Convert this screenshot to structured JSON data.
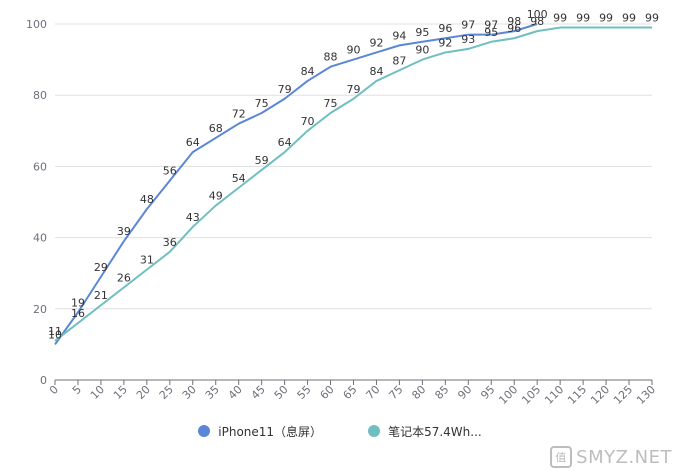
{
  "chart_data": {
    "type": "line",
    "x": [
      0,
      5,
      10,
      15,
      20,
      25,
      30,
      35,
      40,
      45,
      50,
      55,
      60,
      65,
      70,
      75,
      80,
      85,
      90,
      95,
      100,
      105,
      110,
      115,
      120,
      125,
      130
    ],
    "x_tick_labels": [
      "0",
      "5",
      "10",
      "15",
      "20",
      "25",
      "30",
      "35",
      "40",
      "45",
      "50",
      "55",
      "60",
      "65",
      "70",
      "75",
      "80",
      "85",
      "90",
      "95",
      "100",
      "105",
      "110",
      "115",
      "120",
      "125",
      "130"
    ],
    "y_tick_labels": [
      "0",
      "20",
      "40",
      "60",
      "80",
      "100"
    ],
    "ylim": [
      0,
      100
    ],
    "grid": true,
    "legend_position": "bottom",
    "series": [
      {
        "name": "iPhone11（息屏）",
        "color": "#5b87d6",
        "values": [
          10,
          19,
          29,
          39,
          48,
          56,
          64,
          68,
          72,
          75,
          79,
          84,
          88,
          90,
          92,
          94,
          95,
          96,
          97,
          97,
          98,
          100,
          null,
          null,
          null,
          null,
          null
        ],
        "labels": [
          "10",
          "19",
          "29",
          "39",
          "48",
          "56",
          "64",
          "68",
          "72",
          "75",
          "79",
          "84",
          "88",
          "90",
          "92",
          "94",
          "95",
          "96",
          "97",
          "97",
          "98",
          "100",
          null,
          null,
          null,
          null,
          null
        ]
      },
      {
        "name": "笔记本57.4Wh...",
        "color": "#6fbfc2",
        "values": [
          11,
          16,
          21,
          26,
          31,
          36,
          43,
          49,
          54,
          59,
          64,
          70,
          75,
          79,
          84,
          87,
          90,
          92,
          93,
          95,
          96,
          98,
          99,
          99,
          99,
          99,
          99
        ],
        "labels": [
          "11",
          "16",
          "21",
          "26",
          "31",
          "36",
          "43",
          "49",
          "54",
          "59",
          "64",
          "70",
          "75",
          "79",
          "84",
          "87",
          "90",
          "92",
          "93",
          "95",
          "96",
          "98",
          "99",
          "99",
          "99",
          "99",
          "99"
        ]
      }
    ]
  },
  "legend": {
    "items": [
      {
        "label": "iPhone11（息屏）",
        "color": "#5b87d6"
      },
      {
        "label": "笔记本57.4Wh...",
        "color": "#6fbfc2"
      }
    ]
  },
  "watermark": {
    "text": "SMYZ.NET",
    "icon": "smyz-logo-icon"
  }
}
